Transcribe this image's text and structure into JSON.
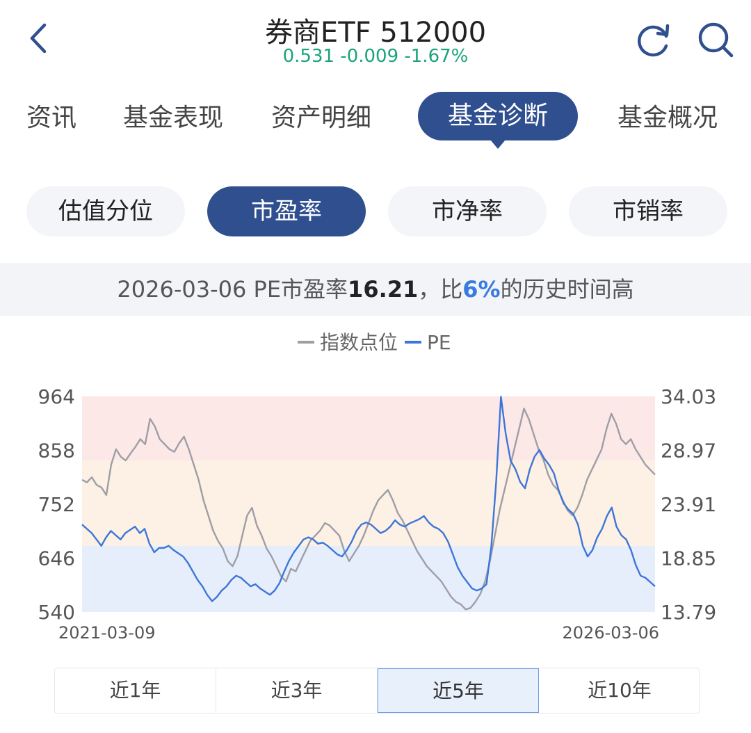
{
  "header": {
    "title": "券商ETF 512000",
    "quote": "0.531 -0.009 -1.67%",
    "quote_color": "#1aa37a"
  },
  "main_tabs": [
    {
      "label": "资讯"
    },
    {
      "label": "基金表现"
    },
    {
      "label": "资产明细"
    },
    {
      "label": "基金诊断",
      "active": true
    },
    {
      "label": "基金概况"
    }
  ],
  "sub_tabs": [
    {
      "label": "估值分位"
    },
    {
      "label": "市盈率",
      "active": true
    },
    {
      "label": "市净率"
    },
    {
      "label": "市销率"
    }
  ],
  "summary": {
    "date": "2026-03-06",
    "metric": "PE市盈率",
    "value": "16.21",
    "sep": "，比",
    "percent": "6%",
    "tail": "的历史时间高"
  },
  "range_tabs": [
    {
      "label": "近1年"
    },
    {
      "label": "近3年"
    },
    {
      "label": "近5年",
      "active": true
    },
    {
      "label": "近10年"
    }
  ],
  "colors": {
    "accent": "#2f4f8f",
    "index_line": "#9e9ea6",
    "pe_line": "#3d76d8"
  },
  "chart_data": {
    "type": "line",
    "legend": [
      "指数点位",
      "PE"
    ],
    "x_start": "2021-03-09",
    "x_end": "2026-03-06",
    "y_left": {
      "ticks": [
        "964",
        "858",
        "752",
        "646",
        "540"
      ],
      "range": [
        540,
        964
      ]
    },
    "y_right": {
      "ticks": [
        "34.03",
        "28.97",
        "23.91",
        "18.85",
        "13.79"
      ],
      "range": [
        13.79,
        34.03
      ]
    },
    "zones_right": [
      [
        13.79,
        20.0
      ],
      [
        20.0,
        28.0
      ],
      [
        28.0,
        34.03
      ]
    ],
    "series": [
      {
        "name": "指数点位",
        "axis": "left",
        "values": [
          800,
          795,
          805,
          790,
          785,
          770,
          830,
          860,
          845,
          838,
          852,
          865,
          880,
          870,
          920,
          905,
          880,
          870,
          860,
          855,
          872,
          885,
          860,
          830,
          800,
          760,
          730,
          700,
          680,
          665,
          640,
          630,
          650,
          690,
          730,
          745,
          710,
          690,
          665,
          650,
          630,
          610,
          600,
          625,
          620,
          640,
          660,
          680,
          690,
          700,
          715,
          710,
          700,
          690,
          660,
          640,
          655,
          670,
          690,
          715,
          740,
          760,
          770,
          780,
          760,
          735,
          720,
          700,
          680,
          660,
          645,
          630,
          620,
          610,
          600,
          585,
          570,
          560,
          555,
          545,
          548,
          560,
          575,
          600,
          640,
          690,
          740,
          780,
          820,
          860,
          900,
          940,
          920,
          890,
          860,
          840,
          810,
          790,
          780,
          760,
          740,
          730,
          745,
          770,
          800,
          820,
          840,
          860,
          900,
          930,
          910,
          880,
          870,
          880,
          860,
          845,
          830,
          820,
          810
        ]
      },
      {
        "name": "PE",
        "axis": "right",
        "values": [
          22.0,
          21.6,
          21.2,
          20.6,
          20.0,
          20.8,
          21.4,
          21.0,
          20.6,
          21.2,
          21.5,
          21.8,
          21.2,
          21.6,
          20.2,
          19.4,
          19.8,
          19.8,
          20.0,
          19.6,
          19.3,
          19.0,
          18.4,
          17.6,
          16.8,
          16.2,
          15.4,
          14.8,
          15.2,
          15.8,
          16.2,
          16.8,
          17.2,
          17.0,
          16.6,
          16.2,
          16.4,
          16.0,
          15.7,
          15.4,
          15.8,
          16.5,
          17.6,
          18.6,
          19.4,
          20.0,
          20.6,
          20.8,
          20.6,
          20.2,
          20.3,
          20.0,
          19.6,
          19.2,
          19.0,
          19.6,
          20.4,
          21.4,
          22.0,
          22.2,
          22.0,
          21.6,
          21.2,
          21.4,
          21.8,
          22.4,
          22.0,
          21.8,
          22.1,
          22.3,
          22.5,
          22.8,
          22.2,
          21.8,
          21.6,
          21.2,
          20.4,
          19.2,
          18.0,
          17.2,
          16.6,
          16.0,
          15.8,
          16.0,
          16.4,
          20.0,
          26.0,
          34.0,
          30.5,
          28.0,
          27.2,
          26.0,
          25.4,
          27.2,
          28.4,
          29.0,
          28.2,
          27.6,
          26.8,
          25.2,
          24.0,
          23.4,
          23.0,
          22.0,
          20.0,
          19.0,
          19.6,
          20.8,
          21.6,
          22.8,
          23.6,
          21.8,
          21.0,
          20.6,
          19.6,
          18.2,
          17.2,
          17.0,
          16.6,
          16.2
        ]
      }
    ]
  }
}
